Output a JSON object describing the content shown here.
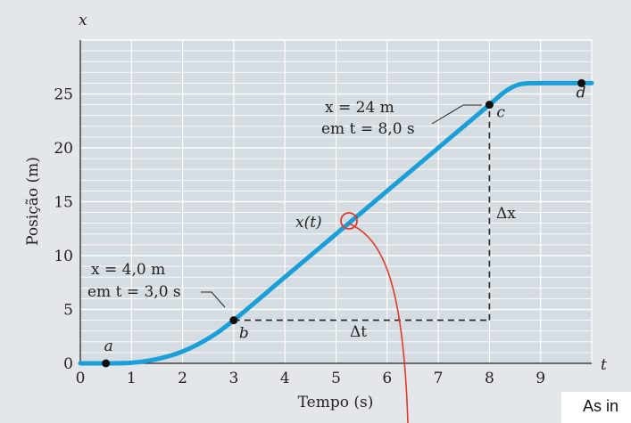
{
  "chart_data": {
    "type": "line",
    "xlabel": "Tempo (s)",
    "ylabel": "Posição (m)",
    "x_axis_symbol": "t",
    "y_axis_symbol": "x",
    "xlim": [
      0,
      10
    ],
    "ylim": [
      0,
      30
    ],
    "x_ticks": [
      "0",
      "1",
      "2",
      "3",
      "4",
      "5",
      "6",
      "7",
      "8",
      "9"
    ],
    "y_ticks": [
      "0",
      "5",
      "10",
      "15",
      "20",
      "25"
    ],
    "grid": true,
    "series": [
      {
        "name": "x(t)",
        "color": "#1a9fd8",
        "points": [
          [
            0,
            0
          ],
          [
            0.5,
            0
          ],
          [
            1.0,
            0.05
          ],
          [
            1.5,
            0.4
          ],
          [
            2.0,
            1.1
          ],
          [
            2.5,
            2.3
          ],
          [
            3.0,
            4.0
          ],
          [
            4.0,
            8.0
          ],
          [
            5.0,
            12.0
          ],
          [
            6.0,
            16.0
          ],
          [
            7.0,
            20.0
          ],
          [
            8.0,
            24.0
          ],
          [
            8.3,
            25.2
          ],
          [
            8.6,
            25.9
          ],
          [
            9.0,
            26.0
          ],
          [
            10.0,
            26.0
          ]
        ]
      }
    ],
    "points": [
      {
        "label": "a",
        "x": 0.5,
        "y": 0
      },
      {
        "label": "b",
        "x": 3.0,
        "y": 4.0
      },
      {
        "label": "c",
        "x": 8.0,
        "y": 24.0
      },
      {
        "label": "d",
        "x": 9.8,
        "y": 26.0
      }
    ],
    "annotations": {
      "c_line1": "x = 24 m",
      "c_line2": "em t = 8,0 s",
      "b_line1": "x = 4,0 m",
      "b_line2": "em t = 3,0 s",
      "curve_label": "x(t)",
      "delta_x": "Δx",
      "delta_t": "Δt"
    }
  },
  "overflow_text": "As in"
}
